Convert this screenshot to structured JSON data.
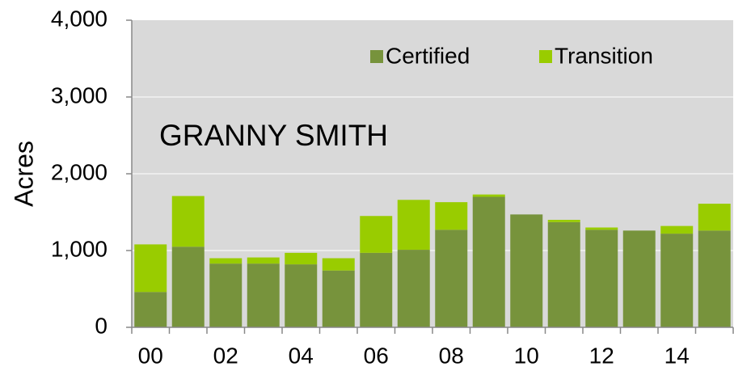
{
  "chart_data": {
    "type": "stacked_bar",
    "annotation": "GRANNY SMITH",
    "y_label": "Acres",
    "categories": [
      "00",
      null,
      "02",
      null,
      "04",
      null,
      "06",
      null,
      "08",
      null,
      "10",
      null,
      "12",
      null,
      "14",
      null
    ],
    "series": [
      {
        "name": "Certified",
        "color": "#77933c",
        "values": [
          460,
          1050,
          830,
          830,
          820,
          740,
          970,
          1010,
          1270,
          1700,
          1470,
          1370,
          1270,
          1260,
          1220,
          1260
        ]
      },
      {
        "name": "Transition",
        "color": "#99cc00",
        "values": [
          620,
          660,
          70,
          80,
          150,
          160,
          480,
          650,
          360,
          30,
          0,
          30,
          30,
          0,
          100,
          350
        ]
      }
    ],
    "ylim": [
      0,
      4000
    ],
    "yticks": [
      0,
      {
        "value": 1000,
        "label": "1,000"
      },
      {
        "value": 2000,
        "label": "2,000"
      },
      {
        "value": 3000,
        "label": "3,000"
      },
      {
        "value": 4000,
        "label": "4,000"
      }
    ],
    "grid": true,
    "legend": "top-right"
  }
}
